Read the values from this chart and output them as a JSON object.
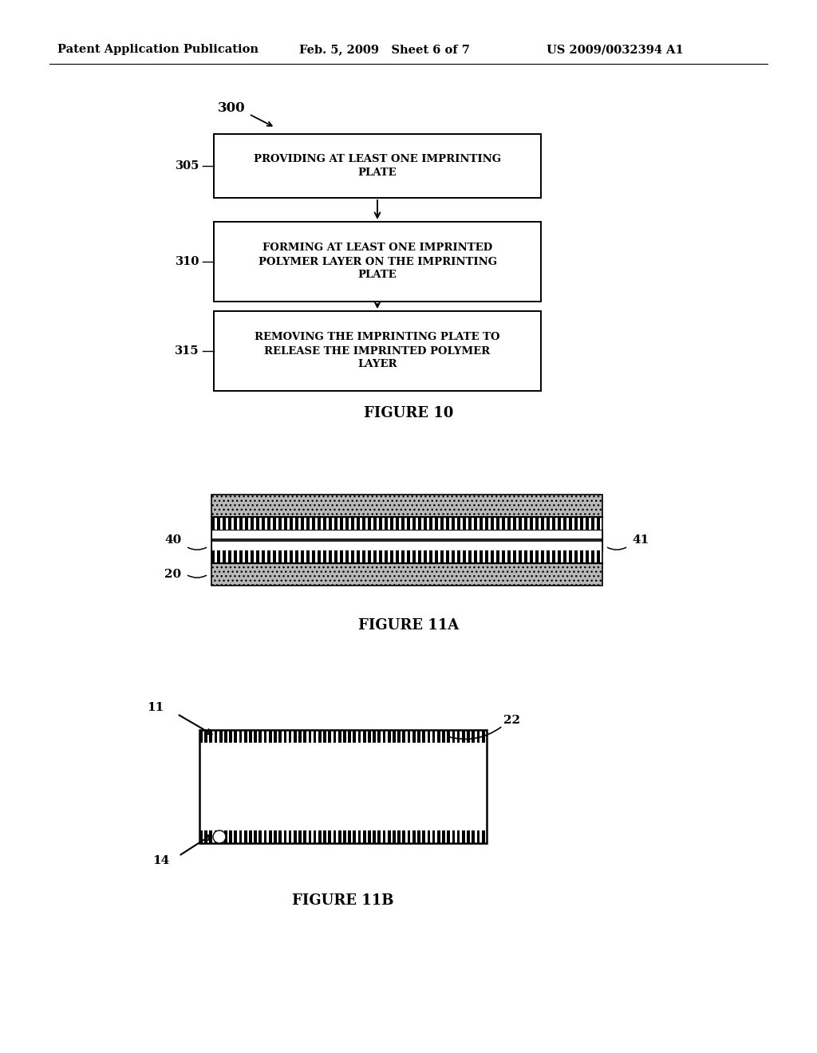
{
  "bg_color": "#ffffff",
  "header_left": "Patent Application Publication",
  "header_mid": "Feb. 5, 2009   Sheet 6 of 7",
  "header_right": "US 2009/0032394 A1",
  "fig10_title": "FIGURE 10",
  "fig10_boxes": [
    {
      "label": "PROVIDING AT LEAST ONE IMPRINTING\nPLATE",
      "ref": "305"
    },
    {
      "label": "FORMING AT LEAST ONE IMPRINTED\nPOLYMER LAYER ON THE IMPRINTING\nPLATE",
      "ref": "310"
    },
    {
      "label": "REMOVING THE IMPRINTING PLATE TO\nRELEASE THE IMPRINTED POLYMER\nLAYER",
      "ref": "315"
    }
  ],
  "fig10_ref_main": "300",
  "fig11a_title": "FIGURE 11A",
  "fig11b_title": "FIGURE 11B"
}
